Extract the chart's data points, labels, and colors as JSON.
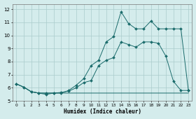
{
  "bg_color": "#d4ecec",
  "grid_color": "#aacccc",
  "line_color": "#1a6b6b",
  "xlabel": "Humidex (Indice chaleur)",
  "xlim": [
    -0.5,
    23.5
  ],
  "ylim": [
    5.0,
    12.4
  ],
  "yticks": [
    5,
    6,
    7,
    8,
    9,
    10,
    11,
    12
  ],
  "xticks": [
    0,
    1,
    2,
    3,
    4,
    5,
    6,
    7,
    8,
    9,
    10,
    11,
    12,
    13,
    14,
    15,
    16,
    17,
    18,
    19,
    20,
    21,
    22,
    23
  ],
  "series": [
    {
      "x": [
        0,
        1,
        2,
        3,
        4,
        5,
        6,
        7,
        8,
        9,
        10,
        11,
        12,
        13,
        14,
        15,
        16,
        17,
        18,
        19,
        20,
        21,
        22,
        23
      ],
      "y": [
        6.3,
        6.05,
        5.7,
        5.6,
        5.6,
        5.6,
        5.6,
        5.6,
        5.6,
        5.6,
        5.6,
        5.6,
        5.6,
        5.6,
        5.6,
        5.6,
        5.6,
        5.6,
        5.6,
        5.6,
        5.6,
        5.6,
        5.6,
        5.6
      ],
      "marker": null
    },
    {
      "x": [
        0,
        1,
        2,
        3,
        4,
        5,
        6,
        7,
        8,
        9,
        10,
        11,
        12,
        13,
        14,
        15,
        16,
        17,
        18,
        19,
        20,
        21,
        22,
        23
      ],
      "y": [
        6.3,
        6.05,
        5.7,
        5.6,
        5.6,
        5.6,
        5.65,
        5.75,
        6.0,
        6.4,
        6.55,
        7.7,
        8.1,
        8.3,
        9.5,
        9.3,
        9.1,
        9.5,
        9.5,
        9.4,
        8.4,
        6.5,
        5.8,
        5.8
      ],
      "marker": "D"
    },
    {
      "x": [
        0,
        1,
        2,
        3,
        4,
        5,
        6,
        7,
        8,
        9,
        10,
        11,
        12,
        13,
        14,
        15,
        16,
        17,
        18,
        19,
        20,
        21,
        22,
        23
      ],
      "y": [
        6.3,
        6.05,
        5.7,
        5.6,
        5.5,
        5.6,
        5.6,
        5.8,
        6.2,
        6.7,
        7.7,
        8.1,
        9.5,
        9.9,
        11.8,
        10.9,
        10.5,
        10.5,
        11.1,
        10.5,
        10.5,
        10.5,
        10.5,
        5.8
      ],
      "marker": "D"
    }
  ]
}
